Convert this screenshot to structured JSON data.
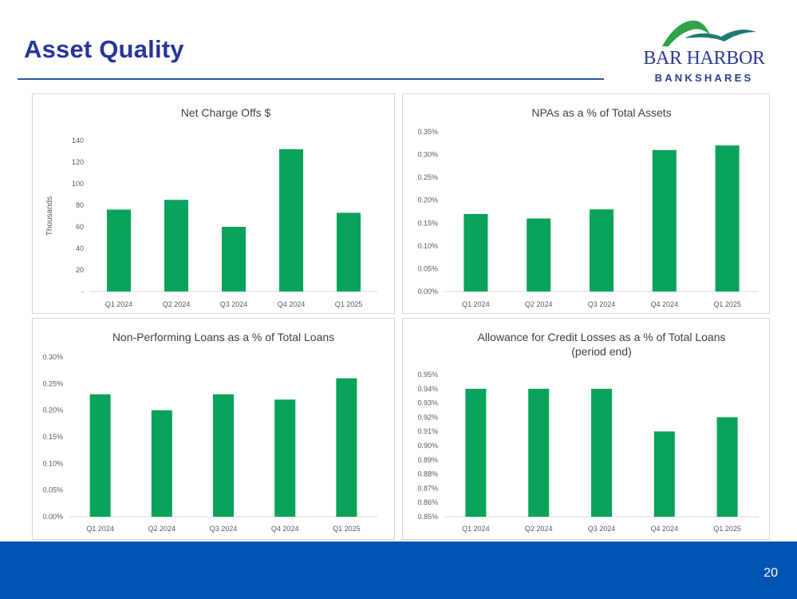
{
  "slide": {
    "title": "Asset Quality",
    "page_number": "20"
  },
  "logo": {
    "line1": "BAR HARBOR",
    "line2": "BANKSHARES",
    "colors": {
      "navy": "#2b3c8f",
      "green": "#2fa24a",
      "teal": "#1f7a73"
    }
  },
  "colors": {
    "bar": "#07a35a",
    "title": "#26349a",
    "footer": "#0254b3",
    "axis_text": "#595959",
    "chart_title": "#404040"
  },
  "chart_data": [
    {
      "type": "bar",
      "title": "Net Charge Offs $",
      "title_lines": [
        "Net Charge Offs $"
      ],
      "ylabel": "Thousands",
      "categories": [
        "Q1 2024",
        "Q2 2024",
        "Q3 2024",
        "Q4 2024",
        "Q1 2025"
      ],
      "values": [
        76,
        85,
        60,
        132,
        73
      ],
      "ylim": [
        0,
        140
      ],
      "yticks": [
        0,
        20,
        40,
        60,
        80,
        100,
        120,
        140
      ],
      "ytick_labels": [
        "-",
        "20",
        "40",
        "60",
        "80",
        "100",
        "120",
        "140"
      ],
      "gridlines": false
    },
    {
      "type": "bar",
      "title": "NPAs as a % of Total Assets",
      "title_lines": [
        "NPAs as a % of Total Assets"
      ],
      "ylabel": "",
      "categories": [
        "Q1 2024",
        "Q2 2024",
        "Q3 2024",
        "Q4 2024",
        "Q1 2025"
      ],
      "values": [
        0.17,
        0.16,
        0.18,
        0.31,
        0.32
      ],
      "ylim": [
        0,
        0.35
      ],
      "yticks": [
        0,
        0.05,
        0.1,
        0.15,
        0.2,
        0.25,
        0.3,
        0.35
      ],
      "ytick_labels": [
        "0.00%",
        "0.05%",
        "0.10%",
        "0.15%",
        "0.20%",
        "0.25%",
        "0.30%",
        "0.35%"
      ],
      "gridlines": false
    },
    {
      "type": "bar",
      "title": "Non-Performing Loans as a % of Total Loans",
      "title_lines": [
        "Non-Performing Loans as a % of Total Loans"
      ],
      "ylabel": "",
      "categories": [
        "Q1 2024",
        "Q2 2024",
        "Q3 2024",
        "Q4 2024",
        "Q1 2025"
      ],
      "values": [
        0.23,
        0.2,
        0.23,
        0.22,
        0.26
      ],
      "ylim": [
        0,
        0.3
      ],
      "yticks": [
        0,
        0.05,
        0.1,
        0.15,
        0.2,
        0.25,
        0.3
      ],
      "ytick_labels": [
        "0.00%",
        "0.05%",
        "0.10%",
        "0.15%",
        "0.20%",
        "0.25%",
        "0.30%"
      ],
      "gridlines": false
    },
    {
      "type": "bar",
      "title": "Allowance for Credit Losses as a % of Total Loans (period end)",
      "title_lines": [
        "Allowance for Credit Losses as a % of Total Loans",
        "(period end)"
      ],
      "ylabel": "",
      "categories": [
        "Q1 2024",
        "Q2 2024",
        "Q3 2024",
        "Q4 2024",
        "Q1 2025"
      ],
      "values": [
        0.94,
        0.94,
        0.94,
        0.91,
        0.92
      ],
      "ylim": [
        0.85,
        0.95
      ],
      "yticks": [
        0.85,
        0.86,
        0.87,
        0.88,
        0.89,
        0.9,
        0.91,
        0.92,
        0.93,
        0.94,
        0.95
      ],
      "ytick_labels": [
        "0.85%",
        "0.86%",
        "0.87%",
        "0.88%",
        "0.89%",
        "0.90%",
        "0.91%",
        "0.92%",
        "0.93%",
        "0.94%",
        "0.95%"
      ],
      "gridlines": false
    }
  ]
}
